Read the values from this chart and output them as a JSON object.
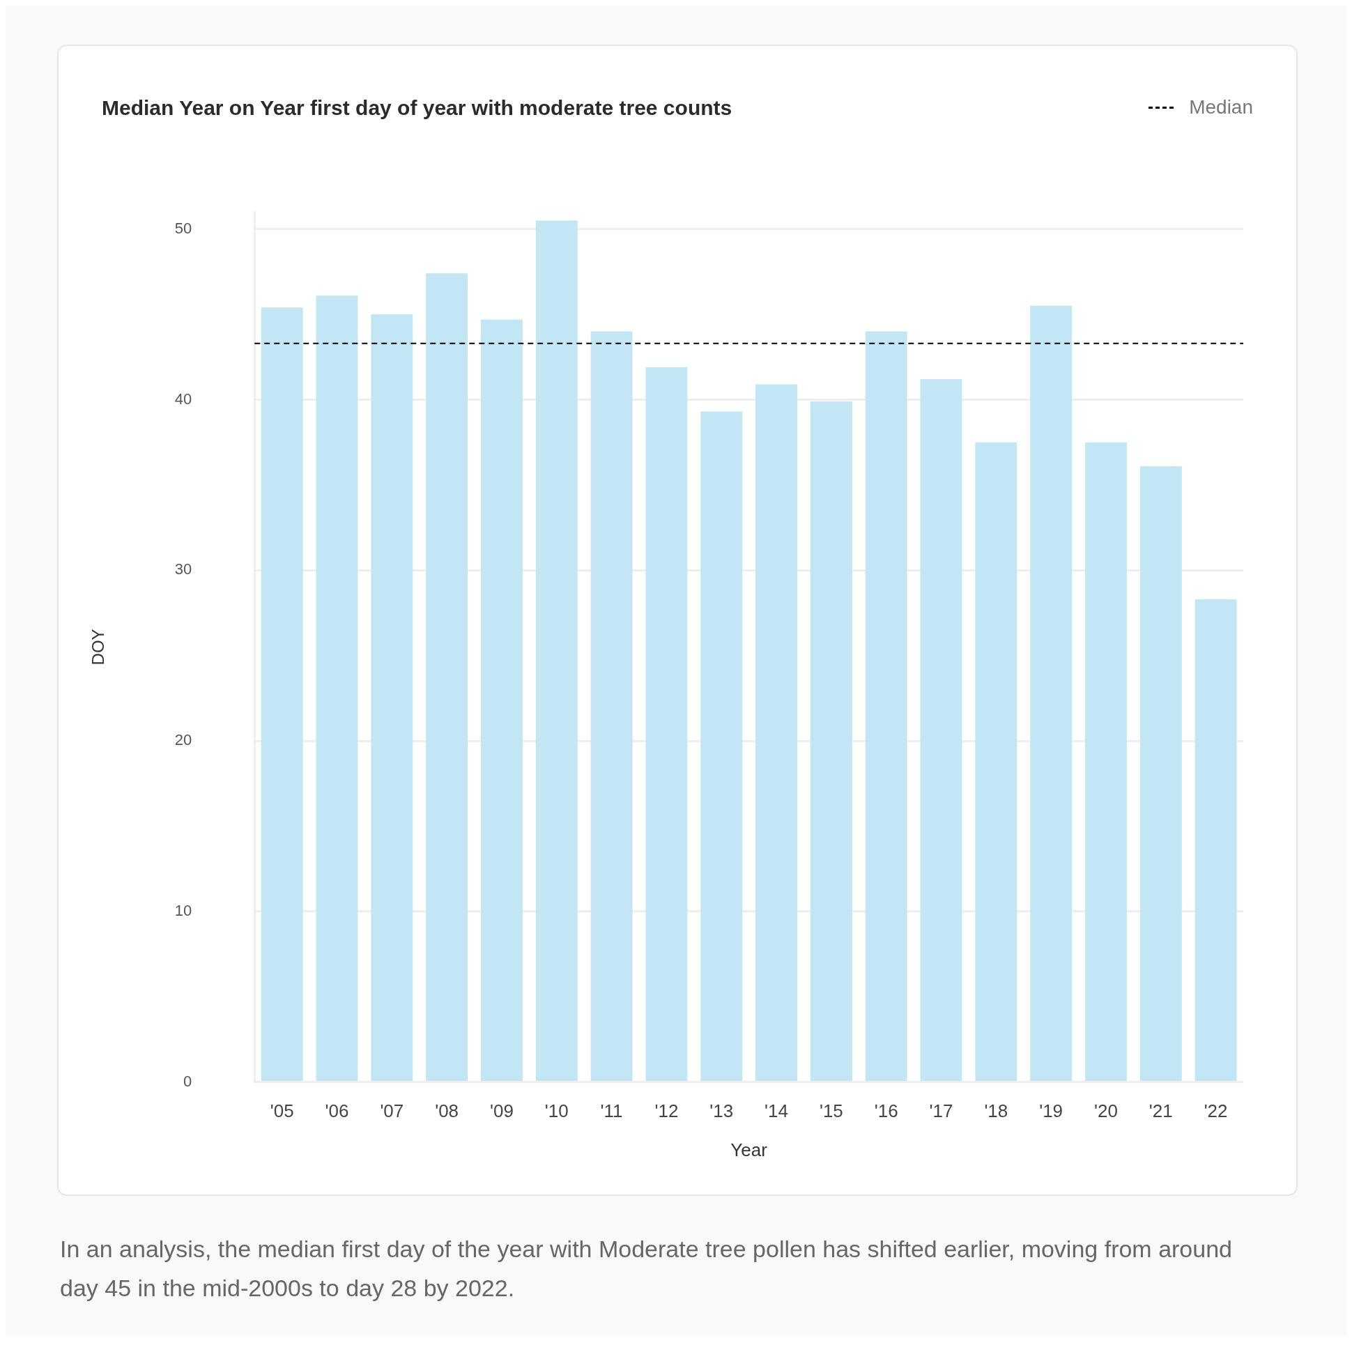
{
  "chart_data": {
    "type": "bar",
    "title": "Median Year on Year first day of year with moderate tree counts",
    "categories": [
      "'05",
      "'06",
      "'07",
      "'08",
      "'09",
      "'10",
      "'11",
      "'12",
      "'13",
      "'14",
      "'15",
      "'16",
      "'17",
      "'18",
      "'19",
      "'20",
      "'21",
      "'22"
    ],
    "values": [
      45.4,
      46.1,
      45.0,
      47.4,
      44.7,
      50.5,
      44.0,
      41.9,
      39.3,
      40.9,
      39.9,
      44.0,
      41.2,
      37.5,
      45.5,
      37.5,
      36.1,
      28.3
    ],
    "color": "#c2e6f4",
    "xlabel": "Year",
    "ylabel": "DOY",
    "ylim": [
      0,
      51
    ],
    "yticks": [
      0,
      10,
      20,
      30,
      40,
      50
    ],
    "grid": "y",
    "legend": "top right",
    "ref_lines": [
      {
        "axis": "y",
        "value": 43.3,
        "label": "Median",
        "color": "#000000",
        "line_style": "dashed"
      }
    ],
    "annotations": [
      "In an analysis, the median first day of the year with Moderate tree pollen has shifted earlier, moving from around day 45 in the mid-2000s to day 28 by 2022."
    ]
  }
}
